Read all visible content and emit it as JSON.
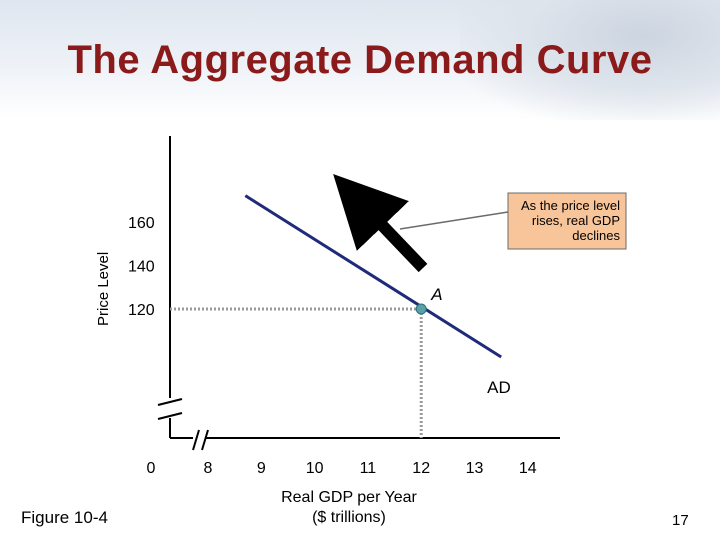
{
  "slide": {
    "title": "The Aggregate Demand Curve",
    "figure_label": "Figure 10-4",
    "page_number": "17"
  },
  "colors": {
    "title": "#8b1a1a",
    "curve": "#1f2a7a",
    "point": "#5aa0a8",
    "dotted": "#9a9a9a",
    "callout_fill": "#f8c59a",
    "callout_border": "#6b6b6b",
    "arrow": "#000000"
  },
  "chart_data": {
    "type": "line",
    "xlabel": "Real GDP per Year\n($ trillions)",
    "ylabel": "Price Level",
    "x_origin_label": "0",
    "x_ticks": [
      8,
      9,
      10,
      11,
      12,
      13,
      14
    ],
    "y_ticks": [
      120,
      140,
      160
    ],
    "xlim": [
      7.7,
      14.5
    ],
    "ylim": [
      90,
      175
    ],
    "series": [
      {
        "name": "AD",
        "x": [
          8.7,
          13.5
        ],
        "y": [
          172,
          98
        ]
      }
    ],
    "points": [
      {
        "label": "A",
        "x": 12,
        "y": 120
      }
    ],
    "callout": {
      "lines": [
        "As the price level",
        "rises, real GDP",
        "declines"
      ]
    },
    "grid": false,
    "axis_breaks": true
  }
}
